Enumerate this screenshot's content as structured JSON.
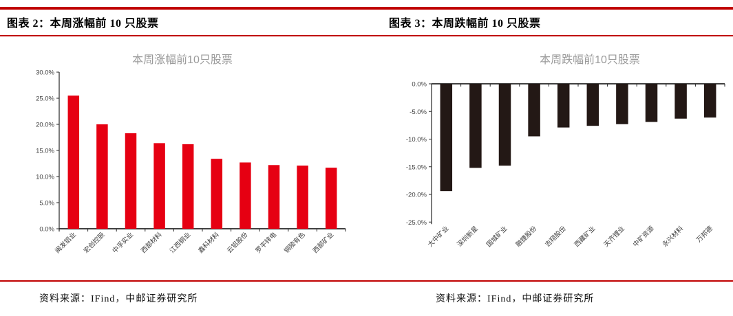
{
  "figures": [
    {
      "header": "图表 2：本周涨幅前 10 只股票",
      "source": "资料来源：IFind，中邮证券研究所"
    },
    {
      "header": "图表 3：本周跌幅前 10 只股票",
      "source": "资料来源：IFind，中邮证券研究所"
    }
  ],
  "colors": {
    "rule_red": "#c00000",
    "gain_bar": "#e60012",
    "loss_bar": "#231815",
    "title_gray": "#9b9b9b",
    "axis": "#262626",
    "label": "#404040"
  },
  "chart_data": [
    {
      "type": "bar",
      "title": "本周涨幅前10只股票",
      "categories": [
        "闽发铝业",
        "宏创控股",
        "中孚实业",
        "西部材料",
        "江西铜业",
        "鑫科材料",
        "云铝股份",
        "罗平锌电",
        "铜陵有色",
        "西部矿业"
      ],
      "values": [
        25.5,
        20.0,
        18.3,
        16.4,
        16.2,
        13.4,
        12.7,
        12.2,
        12.1,
        11.7
      ],
      "xlabel": "",
      "ylabel": "",
      "ylim": [
        0,
        30
      ],
      "ytick_step": 5,
      "ytick_format": "percent_one_decimal",
      "grid": false,
      "legend": "none",
      "bar_color": "#e60012"
    },
    {
      "type": "bar",
      "title": "本周跌幅前10只股票",
      "categories": [
        "大中矿业",
        "深圳新星",
        "国城矿业",
        "融捷股份",
        "吉翔股份",
        "西藏矿业",
        "天齐锂业",
        "中矿资源",
        "永兴材料",
        "万邦德"
      ],
      "values": [
        -19.4,
        -15.2,
        -14.8,
        -9.5,
        -7.9,
        -7.6,
        -7.3,
        -6.9,
        -6.3,
        -6.1
      ],
      "xlabel": "",
      "ylabel": "",
      "ylim": [
        -25,
        0
      ],
      "ytick_step": 5,
      "ytick_format": "percent_one_decimal",
      "grid": false,
      "legend": "none",
      "bar_color": "#231815"
    }
  ]
}
